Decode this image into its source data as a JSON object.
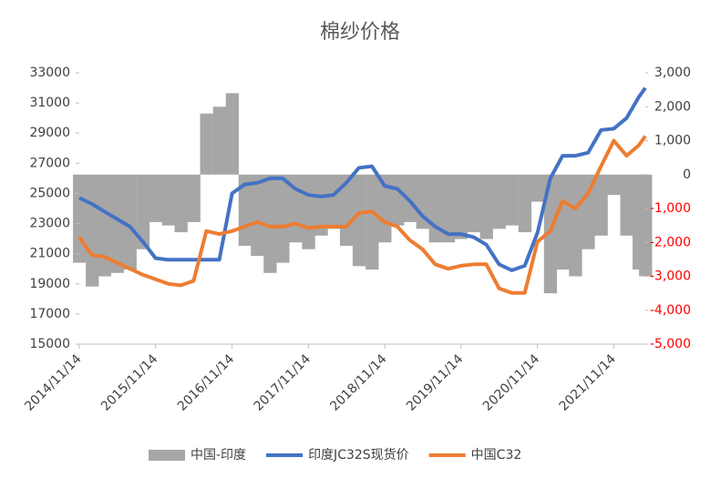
{
  "chart_data": {
    "type": "line",
    "title": "棉纱价格",
    "x": [
      "2014/11/14",
      "2015/01/14",
      "2015/03/14",
      "2015/05/14",
      "2015/07/14",
      "2015/09/14",
      "2015/11/14",
      "2016/01/14",
      "2016/03/14",
      "2016/05/14",
      "2016/07/14",
      "2016/09/14",
      "2016/11/14",
      "2017/01/14",
      "2017/03/14",
      "2017/05/14",
      "2017/07/14",
      "2017/09/14",
      "2017/11/14",
      "2018/01/14",
      "2018/03/14",
      "2018/05/14",
      "2018/07/14",
      "2018/09/14",
      "2018/11/14",
      "2019/01/14",
      "2019/03/14",
      "2019/05/14",
      "2019/07/14",
      "2019/09/14",
      "2019/11/14",
      "2020/01/14",
      "2020/03/14",
      "2020/05/14",
      "2020/07/14",
      "2020/09/14",
      "2020/11/14",
      "2021/01/14",
      "2021/03/14",
      "2021/05/14",
      "2021/07/14",
      "2021/09/14",
      "2021/11/14",
      "2022/01/14",
      "2022/03/14",
      "2022/04/14"
    ],
    "xlim": [
      "2014/11/14",
      "2022/04/14"
    ],
    "xticks": [
      "2014/11/14",
      "2015/11/14",
      "2016/11/14",
      "2017/11/14",
      "2018/11/14",
      "2019/11/14",
      "2020/11/14",
      "2021/11/14"
    ],
    "series": [
      {
        "name": "中国-印度",
        "type": "area",
        "axis": "y2",
        "color": "#a6a6a6",
        "values": [
          -2600,
          -3300,
          -3000,
          -2900,
          -2800,
          -2200,
          -1400,
          -1500,
          -1700,
          -1400,
          1800,
          2000,
          2400,
          -2100,
          -2400,
          -2900,
          -2600,
          -2000,
          -2200,
          -1800,
          -1600,
          -2100,
          -2700,
          -2800,
          -2000,
          -1500,
          -1400,
          -1600,
          -2000,
          -2000,
          -1900,
          -1700,
          -1900,
          -1600,
          -1500,
          -1700,
          -800,
          -3500,
          -2800,
          -3000,
          -2200,
          -1800,
          -600,
          -1800,
          -2800,
          -3000
        ]
      },
      {
        "name": "印度JC32S现货价",
        "type": "line",
        "color": "#4472c4",
        "values": [
          24700,
          24300,
          23800,
          23300,
          22800,
          21800,
          20700,
          20600,
          20600,
          20600,
          20600,
          20600,
          25000,
          25600,
          25700,
          26000,
          26000,
          25300,
          24900,
          24800,
          24900,
          25700,
          26700,
          26800,
          25500,
          25300,
          24500,
          23500,
          22800,
          22300,
          22300,
          22100,
          21600,
          20300,
          19900,
          20200,
          22400,
          26000,
          27500,
          27500,
          27700,
          29200,
          29300,
          30000,
          31400,
          32000
        ]
      },
      {
        "name": "中国C32",
        "type": "line",
        "color": "#ed7d31",
        "values": [
          22100,
          20900,
          20800,
          20400,
          20000,
          19600,
          19300,
          19000,
          18900,
          19200,
          22500,
          22300,
          22500,
          22800,
          23100,
          22800,
          22800,
          23000,
          22700,
          22800,
          22800,
          22800,
          23700,
          23800,
          23100,
          22800,
          21900,
          21300,
          20300,
          20000,
          20200,
          20300,
          20300,
          18700,
          18400,
          18400,
          21800,
          22500,
          24500,
          24000,
          25000,
          26800,
          28500,
          27500,
          28200,
          28800
        ]
      }
    ],
    "ylim": [
      15000,
      33000
    ],
    "yticks": [
      15000,
      17000,
      19000,
      21000,
      23000,
      25000,
      27000,
      29000,
      31000,
      33000
    ],
    "y2lim": [
      -5000,
      3000
    ],
    "y2ticks": [
      {
        "value": -5000,
        "label": "-5,000"
      },
      {
        "value": -4000,
        "label": "-4,000"
      },
      {
        "value": -3000,
        "label": "-3,000"
      },
      {
        "value": -2000,
        "label": "-2,000"
      },
      {
        "value": -1000,
        "label": "-1,000"
      },
      0,
      {
        "value": 1000,
        "label": "1,000"
      },
      {
        "value": 2000,
        "label": "2,000"
      },
      {
        "value": 3000,
        "label": "3,000"
      }
    ],
    "y2_negative_color": "#ff0000",
    "legend": "bottom"
  }
}
